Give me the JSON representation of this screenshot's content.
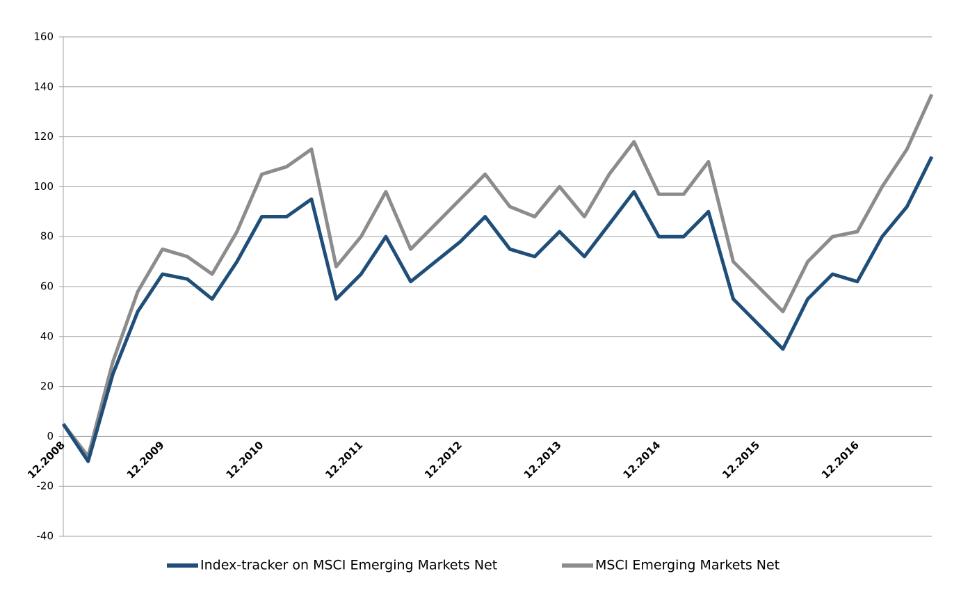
{
  "chart_data": {
    "type": "line",
    "categories": [
      "12.2008",
      null,
      null,
      null,
      "12.2009",
      null,
      null,
      null,
      "12.2010",
      null,
      null,
      null,
      "12.2011",
      null,
      null,
      null,
      "12.2012",
      null,
      null,
      null,
      "12.2013",
      null,
      null,
      null,
      "12.2014",
      null,
      null,
      null,
      "12.2015",
      null,
      null,
      null,
      "12.2016",
      null,
      null,
      null
    ],
    "series": [
      {
        "name": "Index-tracker on MSCI Emerging Markets Net",
        "color": "#1f4e79",
        "values": [
          5,
          -10,
          25,
          50,
          65,
          63,
          55,
          70,
          88,
          88,
          95,
          55,
          65,
          80,
          62,
          70,
          78,
          88,
          75,
          72,
          82,
          72,
          85,
          98,
          80,
          80,
          90,
          55,
          45,
          35,
          55,
          65,
          62,
          80,
          92,
          112
        ]
      },
      {
        "name": "MSCI Emerging Markets Net",
        "color": "#8c8c8c",
        "values": [
          5,
          -8,
          30,
          58,
          75,
          72,
          65,
          82,
          105,
          108,
          115,
          68,
          80,
          98,
          75,
          85,
          95,
          105,
          92,
          88,
          100,
          88,
          105,
          118,
          97,
          97,
          110,
          70,
          60,
          50,
          70,
          80,
          82,
          100,
          115,
          137
        ]
      }
    ],
    "ylim": [
      -40,
      160
    ],
    "yticks": [
      -40,
      -20,
      0,
      20,
      40,
      60,
      80,
      100,
      120,
      140,
      160
    ],
    "grid": true,
    "legend": "bottom"
  }
}
